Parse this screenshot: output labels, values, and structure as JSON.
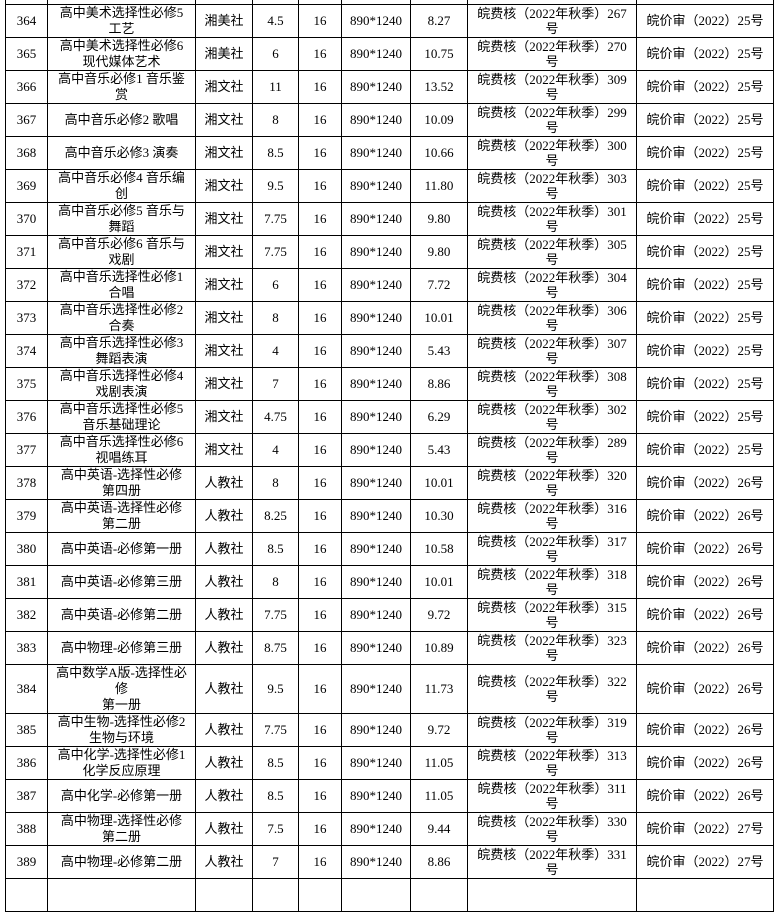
{
  "rows": [
    {
      "no": "364",
      "title": "高中美术选择性必修5\n工艺",
      "publisher": "湘美社",
      "sheets": "4.5",
      "format_k": "16",
      "size": "890*1240",
      "price": "8.27",
      "fee": "皖费核（2022年秋季）267\n号",
      "approval": "皖价审（2022）25号"
    },
    {
      "no": "365",
      "title": "高中美术选择性必修6\n现代媒体艺术",
      "publisher": "湘美社",
      "sheets": "6",
      "format_k": "16",
      "size": "890*1240",
      "price": "10.75",
      "fee": "皖费核（2022年秋季）270\n号",
      "approval": "皖价审（2022）25号"
    },
    {
      "no": "366",
      "title": "高中音乐必修1 音乐鉴\n赏",
      "publisher": "湘文社",
      "sheets": "11",
      "format_k": "16",
      "size": "890*1240",
      "price": "13.52",
      "fee": "皖费核（2022年秋季）309\n号",
      "approval": "皖价审（2022）25号"
    },
    {
      "no": "367",
      "title": "高中音乐必修2 歌唱",
      "publisher": "湘文社",
      "sheets": "8",
      "format_k": "16",
      "size": "890*1240",
      "price": "10.09",
      "fee": "皖费核（2022年秋季）299\n号",
      "approval": "皖价审（2022）25号"
    },
    {
      "no": "368",
      "title": "高中音乐必修3 演奏",
      "publisher": "湘文社",
      "sheets": "8.5",
      "format_k": "16",
      "size": "890*1240",
      "price": "10.66",
      "fee": "皖费核（2022年秋季）300\n号",
      "approval": "皖价审（2022）25号"
    },
    {
      "no": "369",
      "title": "高中音乐必修4 音乐编\n创",
      "publisher": "湘文社",
      "sheets": "9.5",
      "format_k": "16",
      "size": "890*1240",
      "price": "11.80",
      "fee": "皖费核（2022年秋季）303\n号",
      "approval": "皖价审（2022）25号"
    },
    {
      "no": "370",
      "title": "高中音乐必修5 音乐与\n舞蹈",
      "publisher": "湘文社",
      "sheets": "7.75",
      "format_k": "16",
      "size": "890*1240",
      "price": "9.80",
      "fee": "皖费核（2022年秋季）301\n号",
      "approval": "皖价审（2022）25号"
    },
    {
      "no": "371",
      "title": "高中音乐必修6 音乐与\n戏剧",
      "publisher": "湘文社",
      "sheets": "7.75",
      "format_k": "16",
      "size": "890*1240",
      "price": "9.80",
      "fee": "皖费核（2022年秋季）305\n号",
      "approval": "皖价审（2022）25号"
    },
    {
      "no": "372",
      "title": "高中音乐选择性必修1\n合唱",
      "publisher": "湘文社",
      "sheets": "6",
      "format_k": "16",
      "size": "890*1240",
      "price": "7.72",
      "fee": "皖费核（2022年秋季）304\n号",
      "approval": "皖价审（2022）25号"
    },
    {
      "no": "373",
      "title": "高中音乐选择性必修2\n合奏",
      "publisher": "湘文社",
      "sheets": "8",
      "format_k": "16",
      "size": "890*1240",
      "price": "10.01",
      "fee": "皖费核（2022年秋季）306\n号",
      "approval": "皖价审（2022）25号"
    },
    {
      "no": "374",
      "title": "高中音乐选择性必修3\n舞蹈表演",
      "publisher": "湘文社",
      "sheets": "4",
      "format_k": "16",
      "size": "890*1240",
      "price": "5.43",
      "fee": "皖费核（2022年秋季）307\n号",
      "approval": "皖价审（2022）25号"
    },
    {
      "no": "375",
      "title": "高中音乐选择性必修4\n戏剧表演",
      "publisher": "湘文社",
      "sheets": "7",
      "format_k": "16",
      "size": "890*1240",
      "price": "8.86",
      "fee": "皖费核（2022年秋季）308\n号",
      "approval": "皖价审（2022）25号"
    },
    {
      "no": "376",
      "title": "高中音乐选择性必修5\n音乐基础理论",
      "publisher": "湘文社",
      "sheets": "4.75",
      "format_k": "16",
      "size": "890*1240",
      "price": "6.29",
      "fee": "皖费核（2022年秋季）302\n号",
      "approval": "皖价审（2022）25号"
    },
    {
      "no": "377",
      "title": "高中音乐选择性必修6\n视唱练耳",
      "publisher": "湘文社",
      "sheets": "4",
      "format_k": "16",
      "size": "890*1240",
      "price": "5.43",
      "fee": "皖费核（2022年秋季）289\n号",
      "approval": "皖价审（2022）25号"
    },
    {
      "no": "378",
      "title": "高中英语-选择性必修\n第四册",
      "publisher": "人教社",
      "sheets": "8",
      "format_k": "16",
      "size": "890*1240",
      "price": "10.01",
      "fee": "皖费核（2022年秋季）320\n号",
      "approval": "皖价审（2022）26号"
    },
    {
      "no": "379",
      "title": "高中英语-选择性必修\n第二册",
      "publisher": "人教社",
      "sheets": "8.25",
      "format_k": "16",
      "size": "890*1240",
      "price": "10.30",
      "fee": "皖费核（2022年秋季）316\n号",
      "approval": "皖价审（2022）26号"
    },
    {
      "no": "380",
      "title": "高中英语-必修第一册",
      "publisher": "人教社",
      "sheets": "8.5",
      "format_k": "16",
      "size": "890*1240",
      "price": "10.58",
      "fee": "皖费核（2022年秋季）317\n号",
      "approval": "皖价审（2022）26号"
    },
    {
      "no": "381",
      "title": "高中英语-必修第三册",
      "publisher": "人教社",
      "sheets": "8",
      "format_k": "16",
      "size": "890*1240",
      "price": "10.01",
      "fee": "皖费核（2022年秋季）318\n号",
      "approval": "皖价审（2022）26号"
    },
    {
      "no": "382",
      "title": "高中英语-必修第二册",
      "publisher": "人教社",
      "sheets": "7.75",
      "format_k": "16",
      "size": "890*1240",
      "price": "9.72",
      "fee": "皖费核（2022年秋季）315\n号",
      "approval": "皖价审（2022）26号"
    },
    {
      "no": "383",
      "title": "高中物理-必修第三册",
      "publisher": "人教社",
      "sheets": "8.75",
      "format_k": "16",
      "size": "890*1240",
      "price": "10.89",
      "fee": "皖费核（2022年秋季）323\n号",
      "approval": "皖价审（2022）26号"
    },
    {
      "no": "384",
      "title": "高中数学A版-选择性必\n修\n第一册",
      "publisher": "人教社",
      "sheets": "9.5",
      "format_k": "16",
      "size": "890*1240",
      "price": "11.73",
      "fee": "皖费核（2022年秋季）322\n号",
      "approval": "皖价审（2022）26号",
      "tall": true
    },
    {
      "no": "385",
      "title": "高中生物-选择性必修2\n生物与环境",
      "publisher": "人教社",
      "sheets": "7.75",
      "format_k": "16",
      "size": "890*1240",
      "price": "9.72",
      "fee": "皖费核（2022年秋季）319\n号",
      "approval": "皖价审（2022）26号"
    },
    {
      "no": "386",
      "title": "高中化学-选择性必修1\n化学反应原理",
      "publisher": "人教社",
      "sheets": "8.5",
      "format_k": "16",
      "size": "890*1240",
      "price": "11.05",
      "fee": "皖费核（2022年秋季）313\n号",
      "approval": "皖价审（2022）26号"
    },
    {
      "no": "387",
      "title": "高中化学-必修第一册",
      "publisher": "人教社",
      "sheets": "8.5",
      "format_k": "16",
      "size": "890*1240",
      "price": "11.05",
      "fee": "皖费核（2022年秋季）311\n号",
      "approval": "皖价审（2022）26号"
    },
    {
      "no": "388",
      "title": "高中物理-选择性必修\n第二册",
      "publisher": "人教社",
      "sheets": "7.5",
      "format_k": "16",
      "size": "890*1240",
      "price": "9.44",
      "fee": "皖费核（2022年秋季）330\n号",
      "approval": "皖价审（2022）27号"
    },
    {
      "no": "389",
      "title": "高中物理-必修第二册",
      "publisher": "人教社",
      "sheets": "7",
      "format_k": "16",
      "size": "890*1240",
      "price": "8.86",
      "fee": "皖费核（2022年秋季）331\n号",
      "approval": "皖价审（2022）27号"
    }
  ]
}
